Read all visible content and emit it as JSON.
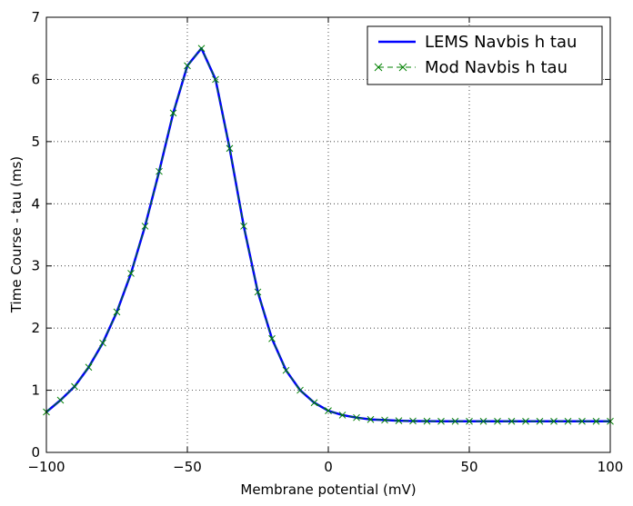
{
  "chart_data": {
    "type": "line",
    "xlabel": "Membrane potential (mV)",
    "ylabel": "Time Course - tau (ms)",
    "xlim": [
      -100,
      100
    ],
    "ylim": [
      0,
      7
    ],
    "x_ticks": [
      -100,
      -50,
      0,
      50,
      100
    ],
    "x_tick_labels": [
      "−100",
      "−50",
      "0",
      "50",
      "100"
    ],
    "y_ticks": [
      0,
      1,
      2,
      3,
      4,
      5,
      6,
      7
    ],
    "y_tick_labels": [
      "0",
      "1",
      "2",
      "3",
      "4",
      "5",
      "6",
      "7"
    ],
    "grid": true,
    "legend_position": "top-right",
    "series": [
      {
        "name": "LEMS Navbis h tau",
        "color": "#0000ff",
        "style": "solid-line",
        "x": [
          -100,
          -95,
          -90,
          -85,
          -80,
          -75,
          -70,
          -65,
          -60,
          -55,
          -50,
          -45,
          -40,
          -35,
          -30,
          -25,
          -20,
          -15,
          -10,
          -5,
          0,
          5,
          10,
          15,
          20,
          25,
          30,
          35,
          40,
          45,
          50,
          55,
          60,
          65,
          70,
          75,
          80,
          85,
          90,
          95,
          100
        ],
        "y": [
          0.65,
          0.84,
          1.06,
          1.37,
          1.76,
          2.26,
          2.88,
          3.64,
          4.52,
          5.46,
          6.22,
          6.5,
          6.0,
          4.89,
          3.64,
          2.58,
          1.83,
          1.32,
          1.0,
          0.8,
          0.67,
          0.6,
          0.56,
          0.53,
          0.52,
          0.51,
          0.505,
          0.502,
          0.501,
          0.5,
          0.5,
          0.5,
          0.5,
          0.5,
          0.5,
          0.5,
          0.5,
          0.5,
          0.5,
          0.5,
          0.5
        ]
      },
      {
        "name": "Mod Navbis h tau",
        "color": "#008000",
        "style": "x-markers-dashed",
        "x": [
          -100,
          -95,
          -90,
          -85,
          -80,
          -75,
          -70,
          -65,
          -60,
          -55,
          -50,
          -45,
          -40,
          -35,
          -30,
          -25,
          -20,
          -15,
          -10,
          -5,
          0,
          5,
          10,
          15,
          20,
          25,
          30,
          35,
          40,
          45,
          50,
          55,
          60,
          65,
          70,
          75,
          80,
          85,
          90,
          95,
          100
        ],
        "y": [
          0.65,
          0.84,
          1.06,
          1.37,
          1.76,
          2.26,
          2.88,
          3.64,
          4.52,
          5.46,
          6.22,
          6.5,
          6.0,
          4.89,
          3.64,
          2.58,
          1.83,
          1.32,
          1.0,
          0.8,
          0.67,
          0.6,
          0.56,
          0.53,
          0.52,
          0.51,
          0.505,
          0.502,
          0.501,
          0.5,
          0.5,
          0.5,
          0.5,
          0.5,
          0.5,
          0.5,
          0.5,
          0.5,
          0.5,
          0.5,
          0.5
        ]
      }
    ]
  }
}
